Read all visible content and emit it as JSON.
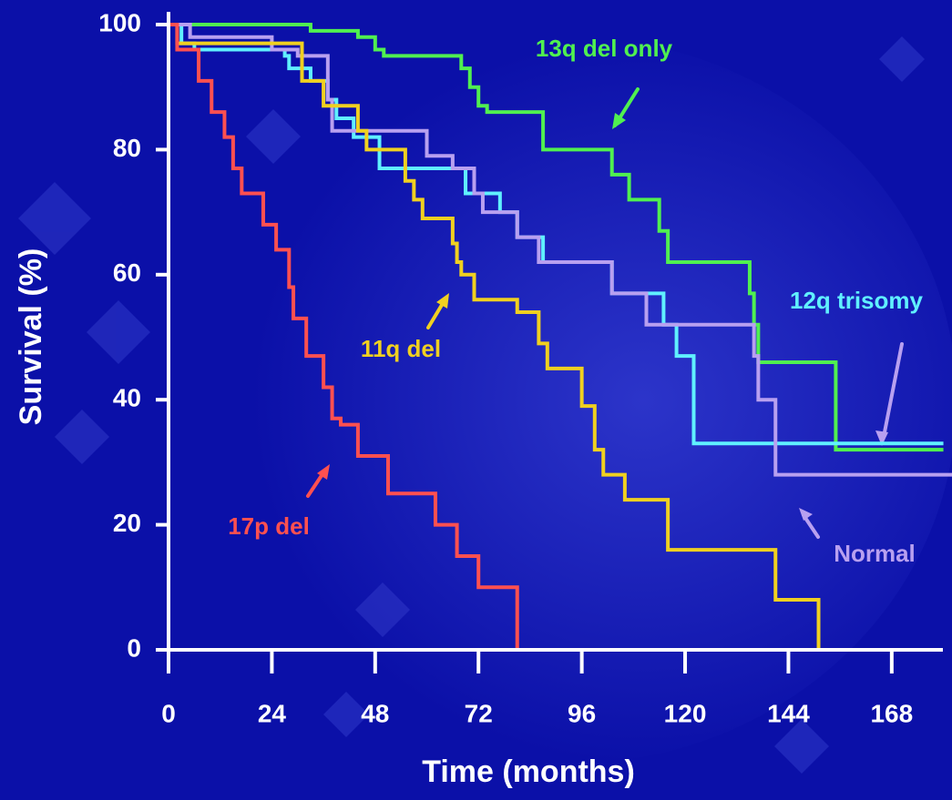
{
  "chart_data": {
    "type": "step",
    "x_label": "Time (months)",
    "y_label": "Survival (%)",
    "xlim": [
      0,
      182
    ],
    "ylim": [
      0,
      100
    ],
    "xticks": [
      0,
      24,
      48,
      72,
      96,
      120,
      144,
      168
    ],
    "yticks": [
      0,
      20,
      40,
      60,
      80,
      100
    ],
    "series": [
      {
        "name": "13q del only",
        "color": "#50f050",
        "x": [
          0,
          31,
          33,
          44,
          48,
          50,
          68,
          70,
          72,
          74,
          87,
          103,
          107,
          114,
          116,
          135,
          136,
          137,
          155,
          180
        ],
        "values": [
          100,
          100,
          99,
          98,
          96,
          95,
          93,
          90,
          87,
          86,
          80,
          76,
          72,
          67,
          62,
          57,
          52,
          46,
          32,
          32
        ]
      },
      {
        "name": "12q trisomy",
        "color": "#60f0ff",
        "x": [
          0,
          3,
          6,
          27,
          28,
          33,
          37,
          39,
          43,
          49,
          69,
          77,
          81,
          87,
          103,
          115,
          118,
          122,
          180
        ],
        "values": [
          100,
          97,
          96,
          95,
          93,
          91,
          88,
          85,
          82,
          77,
          73,
          70,
          66,
          62,
          57,
          52,
          47,
          33,
          33
        ]
      },
      {
        "name": "Normal",
        "color": "#b8a0f0",
        "x": [
          0,
          5,
          24,
          30,
          37,
          38,
          48,
          60,
          66,
          71,
          73,
          81,
          86,
          103,
          111,
          136,
          137,
          141,
          182
        ],
        "values": [
          100,
          98,
          96,
          95,
          88,
          83,
          83,
          79,
          77,
          73,
          70,
          66,
          62,
          57,
          52,
          47,
          40,
          28,
          28
        ]
      },
      {
        "name": "11q del",
        "color": "#f0d020",
        "x": [
          0,
          2,
          31,
          36,
          44,
          46,
          55,
          57,
          59,
          66,
          67,
          68,
          71,
          81,
          86,
          88,
          96,
          99,
          101,
          106,
          116,
          141,
          151
        ],
        "values": [
          100,
          97,
          91,
          87,
          83,
          80,
          75,
          72,
          69,
          65,
          62,
          60,
          56,
          54,
          49,
          45,
          39,
          32,
          28,
          24,
          16,
          8,
          0
        ]
      },
      {
        "name": "17p del",
        "color": "#ff5050",
        "x": [
          0,
          2,
          7,
          10,
          13,
          15,
          17,
          22,
          25,
          28,
          29,
          32,
          36,
          38,
          40,
          44,
          51,
          62,
          67,
          72,
          81
        ],
        "values": [
          100,
          96,
          91,
          86,
          82,
          77,
          73,
          68,
          64,
          58,
          53,
          47,
          42,
          37,
          36,
          31,
          25,
          20,
          15,
          10,
          0
        ]
      }
    ]
  }
}
